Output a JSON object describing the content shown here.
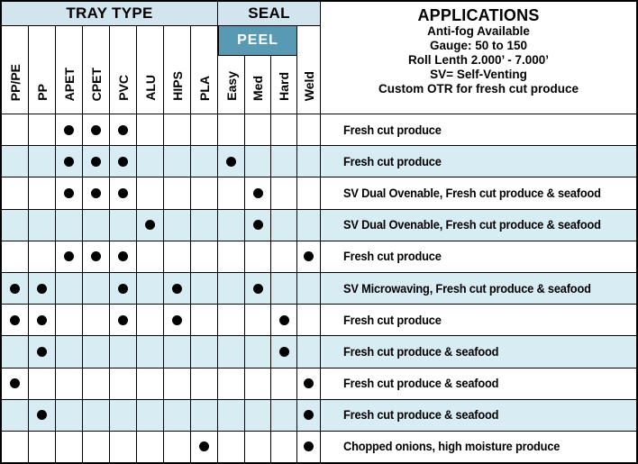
{
  "table": {
    "tray_type_label": "TRAY TYPE",
    "seal_label": "SEAL",
    "peel_label": "PEEL",
    "columns": [
      "PP/PE",
      "PP",
      "APET",
      "CPET",
      "PVC",
      "ALU",
      "HIPS",
      "PLA",
      "Easy",
      "Med",
      "Hard",
      "Weld"
    ],
    "applications_header": {
      "title": "APPLICATIONS",
      "lines": [
        "Anti-fog Available",
        "Gauge: 50 to 150",
        "Roll Lenth 2.000’ - 7.000’",
        "SV= Self-Venting",
        "Custom OTR for fresh cut produce"
      ]
    },
    "rows": [
      {
        "marks": [
          "APET",
          "CPET",
          "PVC"
        ],
        "application": "Fresh cut produce"
      },
      {
        "marks": [
          "APET",
          "CPET",
          "PVC",
          "Easy"
        ],
        "application": "Fresh cut produce"
      },
      {
        "marks": [
          "APET",
          "CPET",
          "PVC",
          "Med"
        ],
        "application": "SV Dual Ovenable, Fresh cut produce & seafood"
      },
      {
        "marks": [
          "ALU",
          "Med"
        ],
        "application": "SV Dual Ovenable, Fresh cut produce & seafood"
      },
      {
        "marks": [
          "APET",
          "CPET",
          "PVC",
          "Weld"
        ],
        "application": "Fresh cut produce"
      },
      {
        "marks": [
          "PP/PE",
          "PP",
          "PVC",
          "HIPS",
          "Med"
        ],
        "application": "SV Microwaving, Fresh cut produce & seafood"
      },
      {
        "marks": [
          "PP/PE",
          "PP",
          "PVC",
          "HIPS",
          "Hard"
        ],
        "application": "Fresh cut produce"
      },
      {
        "marks": [
          "PP",
          "Hard"
        ],
        "application": "Fresh cut produce & seafood"
      },
      {
        "marks": [
          "PP/PE",
          "Weld"
        ],
        "application": "Fresh cut produce & seafood"
      },
      {
        "marks": [
          "PP",
          "Weld"
        ],
        "application": "Fresh cut produce & seafood"
      },
      {
        "marks": [
          "PLA",
          "Weld"
        ],
        "application": "Chopped onions, high moisture produce"
      }
    ]
  },
  "colors": {
    "header_bg": "#d2e5ef",
    "row_alt_bg": "#d8ecf4",
    "peel_bg": "#5899b4",
    "dot": "#000000",
    "border": "#000000"
  }
}
